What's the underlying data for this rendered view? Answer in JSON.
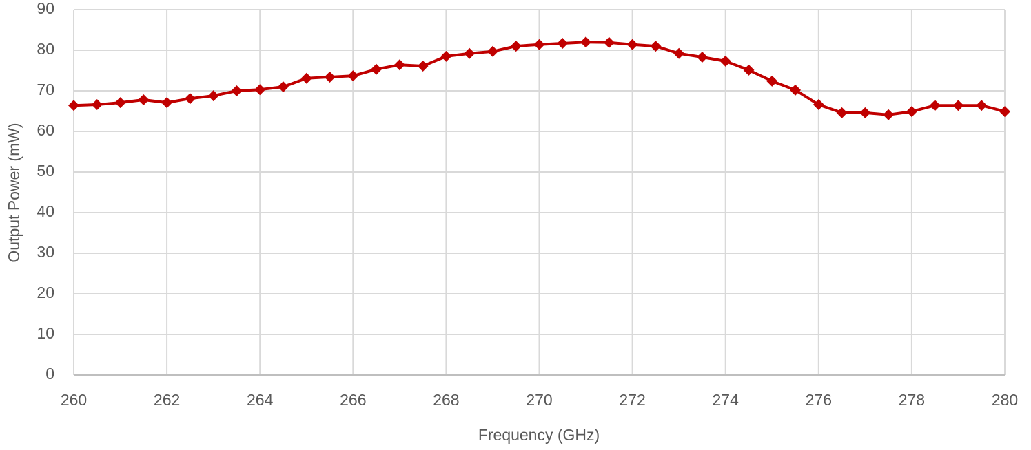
{
  "chart_data": {
    "type": "line",
    "x_label": "Frequency (GHz)",
    "y_label": "Output Power (mW)",
    "x": [
      260,
      260.5,
      261,
      261.5,
      262,
      262.5,
      263,
      263.5,
      264,
      264.5,
      265,
      265.5,
      266,
      266.5,
      267,
      267.5,
      268,
      268.5,
      269,
      269.5,
      270,
      270.5,
      271,
      271.5,
      272,
      272.5,
      273,
      273.5,
      274,
      274.5,
      275,
      275.5,
      276,
      276.5,
      277,
      277.5,
      278,
      278.5,
      279,
      279.5,
      280
    ],
    "series": [
      {
        "color": "#c00000",
        "marker": "diamond",
        "values": [
          66.4,
          66.6,
          67.1,
          67.8,
          67.1,
          68.1,
          68.8,
          70.0,
          70.3,
          71.0,
          73.1,
          73.4,
          73.7,
          75.3,
          76.4,
          76.1,
          78.5,
          79.2,
          79.7,
          81.0,
          81.4,
          81.7,
          82.0,
          81.9,
          81.4,
          81.0,
          79.2,
          78.3,
          77.3,
          75.1,
          72.4,
          70.2,
          66.6,
          64.6,
          64.6,
          64.1,
          64.9,
          66.4,
          66.4,
          66.4,
          64.9
        ]
      }
    ],
    "xlim": [
      260,
      280
    ],
    "xticks": [
      260,
      262,
      264,
      266,
      268,
      270,
      272,
      274,
      276,
      278,
      280
    ],
    "ylim": [
      0,
      90
    ],
    "yticks": [
      0,
      10,
      20,
      30,
      40,
      50,
      60,
      70,
      80,
      90
    ],
    "grid": true
  }
}
